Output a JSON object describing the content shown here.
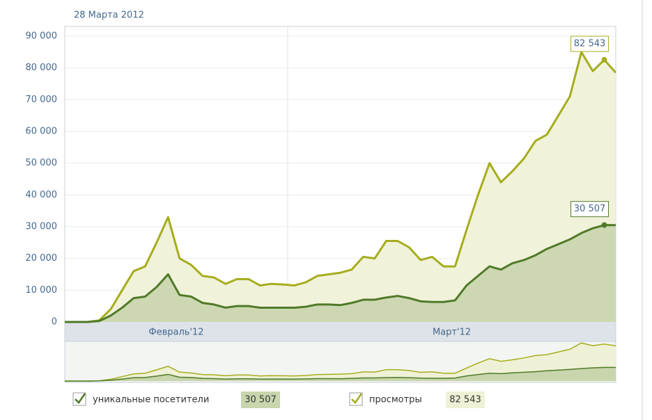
{
  "chart_data": {
    "type": "area",
    "date": "28 Марта 2012",
    "months": [
      "Февраль'12",
      "Март'12"
    ],
    "categories": [
      null,
      null,
      null,
      null,
      null,
      null,
      null,
      null,
      null,
      null,
      null,
      null,
      null,
      null,
      null,
      null,
      null,
      null,
      null,
      null,
      null,
      null,
      null,
      null,
      null,
      null,
      null,
      null,
      null,
      null,
      null,
      null,
      null,
      null,
      null,
      null,
      null,
      null,
      null,
      null,
      null,
      null,
      null,
      null,
      null,
      null,
      null,
      null,
      null
    ],
    "ylim": [
      0,
      90000
    ],
    "yticks": [
      0,
      {
        "value": 10000,
        "label": "10 000"
      },
      {
        "value": 20000,
        "label": "20 000"
      },
      {
        "value": 30000,
        "label": "30 000"
      },
      {
        "value": 40000,
        "label": "40 000"
      },
      {
        "value": 50000,
        "label": "50 000"
      },
      {
        "value": 60000,
        "label": "60 000"
      },
      {
        "value": 70000,
        "label": "70 000"
      },
      {
        "value": 80000,
        "label": "80 000"
      },
      {
        "value": 90000,
        "label": "90 000"
      }
    ],
    "grid": true,
    "series": [
      {
        "name": "уникальные посетители",
        "color": "#4f7a28",
        "fill": "#c9d5ad",
        "values": [
          0,
          0,
          0,
          300,
          2000,
          4500,
          7500,
          8000,
          11000,
          15000,
          8500,
          8000,
          6000,
          5500,
          4500,
          5000,
          5000,
          4500,
          4500,
          4500,
          4500,
          4800,
          5500,
          5500,
          5300,
          6000,
          7000,
          7000,
          7700,
          8200,
          7500,
          6500,
          6300,
          6300,
          6800,
          11500,
          14500,
          17500,
          16500,
          18500,
          19500,
          21000,
          23000,
          24500,
          26000,
          28000,
          29500,
          30507,
          30500
        ],
        "value_labels": [
          null,
          null,
          null,
          null,
          null,
          null,
          null,
          null,
          null,
          null,
          null,
          null,
          null,
          null,
          null,
          null,
          null,
          null,
          null,
          null,
          null,
          null,
          null,
          null,
          null,
          null,
          null,
          null,
          null,
          null,
          null,
          null,
          null,
          null,
          null,
          null,
          null,
          null,
          null,
          null,
          null,
          null,
          null,
          null,
          null,
          null,
          null,
          "30 507",
          null
        ]
      },
      {
        "name": "просмотры",
        "color": "#a5ad1c",
        "fill": "#eff1d6",
        "values": [
          0,
          0,
          0,
          500,
          4000,
          10000,
          16000,
          17500,
          25000,
          33000,
          20000,
          18000,
          14500,
          14000,
          12000,
          13500,
          13500,
          11500,
          12000,
          11800,
          11500,
          12500,
          14500,
          15000,
          15500,
          16500,
          20500,
          20000,
          25500,
          25500,
          23500,
          19500,
          20500,
          17500,
          17500,
          29000,
          40000,
          50000,
          44000,
          47500,
          51500,
          57000,
          59000,
          65000,
          71000,
          85000,
          79000,
          82543,
          78500
        ],
        "value_labels": [
          null,
          null,
          null,
          null,
          null,
          null,
          null,
          null,
          null,
          null,
          null,
          null,
          null,
          null,
          null,
          null,
          null,
          null,
          null,
          null,
          null,
          null,
          null,
          null,
          null,
          null,
          null,
          null,
          null,
          null,
          null,
          null,
          null,
          null,
          null,
          null,
          null,
          null,
          null,
          null,
          null,
          null,
          null,
          null,
          null,
          null,
          null,
          "82 543",
          null
        ]
      }
    ]
  }
}
